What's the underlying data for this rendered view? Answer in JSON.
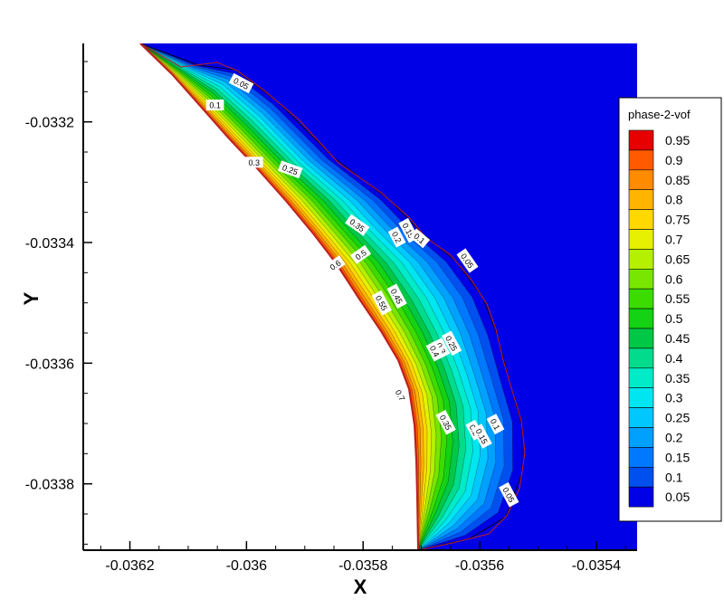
{
  "chart_data": {
    "type": "contour",
    "xlabel": "X",
    "ylabel": "Y",
    "xlim": [
      -0.03628,
      -0.03533
    ],
    "ylim": [
      -0.03391,
      -0.03307
    ],
    "x_ticks": [
      {
        "value": -0.0362,
        "label": "-0.0362"
      },
      {
        "value": -0.036,
        "label": "-0.036"
      },
      {
        "value": -0.0358,
        "label": "-0.0358"
      },
      {
        "value": -0.0356,
        "label": "-0.0356"
      },
      {
        "value": -0.0354,
        "label": "-0.0354"
      }
    ],
    "y_ticks": [
      {
        "value": -0.0332,
        "label": "-0.0332"
      },
      {
        "value": -0.0334,
        "label": "-0.0334"
      },
      {
        "value": -0.0336,
        "label": "-0.0336"
      },
      {
        "value": -0.0338,
        "label": "-0.0338"
      }
    ],
    "legend": {
      "title": "phase-2-vof",
      "placement": "right",
      "levels": [
        "0.95",
        "0.9",
        "0.85",
        "0.8",
        "0.75",
        "0.7",
        "0.65",
        "0.6",
        "0.55",
        "0.5",
        "0.45",
        "0.4",
        "0.35",
        "0.3",
        "0.25",
        "0.2",
        "0.15",
        "0.1",
        "0.05"
      ],
      "colors": [
        "#e60000",
        "#ff5a00",
        "#ff8c00",
        "#ffb400",
        "#ffd800",
        "#e6f000",
        "#b4f000",
        "#78e600",
        "#3cdc00",
        "#14d214",
        "#00c846",
        "#00dc8c",
        "#00ebc8",
        "#00e6f0",
        "#00c8ff",
        "#00a0ff",
        "#0078ff",
        "#0050f0",
        "#0000e6"
      ]
    },
    "field_colors": {
      "background": "#0000e6",
      "interface_line": "#c02020",
      "solid_region": "#ffffff"
    },
    "contour_labels": [
      {
        "text": "0.05",
        "x": -0.036009,
        "y": -0.033136,
        "angle": 28
      },
      {
        "text": "0.1",
        "x": -0.036054,
        "y": -0.033172,
        "angle": 0
      },
      {
        "text": "0.3",
        "x": -0.035987,
        "y": -0.033267,
        "angle": 0
      },
      {
        "text": "0.25",
        "x": -0.035925,
        "y": -0.033279,
        "angle": 20
      },
      {
        "text": "0.35",
        "x": -0.03581,
        "y": -0.033371,
        "angle": 35
      },
      {
        "text": "0.2",
        "x": -0.035742,
        "y": -0.033391,
        "angle": 62
      },
      {
        "text": "0.15",
        "x": -0.035722,
        "y": -0.03338,
        "angle": 62
      },
      {
        "text": "0.1",
        "x": -0.035703,
        "y": -0.033393,
        "angle": 40
      },
      {
        "text": "0.05",
        "x": -0.035621,
        "y": -0.03343,
        "angle": 55
      },
      {
        "text": "0.5",
        "x": -0.035804,
        "y": -0.03342,
        "angle": -35
      },
      {
        "text": "0.6",
        "x": -0.035848,
        "y": -0.033437,
        "angle": -35
      },
      {
        "text": "0.45",
        "x": -0.035742,
        "y": -0.033489,
        "angle": 62
      },
      {
        "text": "0.55",
        "x": -0.035768,
        "y": -0.0335,
        "angle": 62
      },
      {
        "text": "0.25",
        "x": -0.035648,
        "y": -0.033567,
        "angle": 62
      },
      {
        "text": "0.3",
        "x": -0.035666,
        "y": -0.033575,
        "angle": 62
      },
      {
        "text": "0.4",
        "x": -0.035677,
        "y": -0.03358,
        "angle": 62
      },
      {
        "text": "0.7",
        "x": -0.035736,
        "y": -0.033653,
        "angle": 62
      },
      {
        "text": "0.35",
        "x": -0.035658,
        "y": -0.033698,
        "angle": 62
      },
      {
        "text": "0.2",
        "x": -0.035609,
        "y": -0.033711,
        "angle": 62
      },
      {
        "text": "0.15",
        "x": -0.035596,
        "y": -0.033721,
        "angle": 62
      },
      {
        "text": "0.1",
        "x": -0.035573,
        "y": -0.033701,
        "angle": 62
      },
      {
        "text": "0.05",
        "x": -0.03555,
        "y": -0.033818,
        "angle": 62
      }
    ]
  }
}
